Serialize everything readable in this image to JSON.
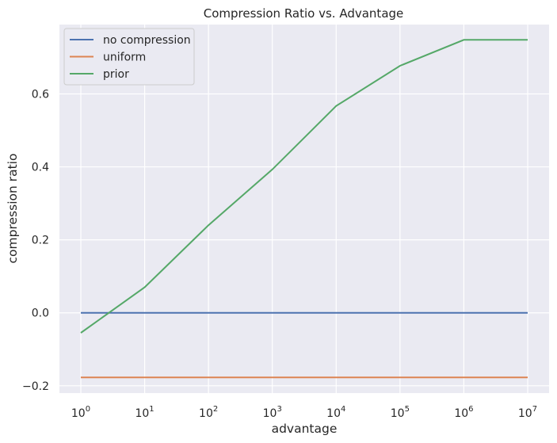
{
  "chart_data": {
    "type": "line",
    "title": "Compression Ratio vs. Advantage",
    "xlabel": "advantage",
    "ylabel": "compression ratio",
    "x_scale": "log",
    "x": [
      1,
      10,
      100,
      1000,
      10000,
      100000,
      1000000,
      10000000
    ],
    "x_tick_labels": [
      {
        "base": "10",
        "exp": "0"
      },
      {
        "base": "10",
        "exp": "1"
      },
      {
        "base": "10",
        "exp": "2"
      },
      {
        "base": "10",
        "exp": "3"
      },
      {
        "base": "10",
        "exp": "4"
      },
      {
        "base": "10",
        "exp": "5"
      },
      {
        "base": "10",
        "exp": "6"
      },
      {
        "base": "10",
        "exp": "7"
      }
    ],
    "y_ticks": [
      -0.2,
      0.0,
      0.2,
      0.4,
      0.6
    ],
    "y_tick_labels": [
      "−0.2",
      "0.0",
      "0.2",
      "0.4",
      "0.6"
    ],
    "ylim": [
      -0.22,
      0.79
    ],
    "grid": true,
    "legend_position": "top-left",
    "series": [
      {
        "name": "no compression",
        "color": "#4c72b0",
        "values": [
          0,
          0,
          0,
          0,
          0,
          0,
          0,
          0
        ]
      },
      {
        "name": "uniform",
        "color": "#dd8452",
        "values": [
          -0.177,
          -0.177,
          -0.177,
          -0.177,
          -0.177,
          -0.177,
          -0.177,
          -0.177
        ]
      },
      {
        "name": "prior",
        "color": "#55a868",
        "values": [
          -0.055,
          0.07,
          0.24,
          0.393,
          0.567,
          0.677,
          0.748,
          0.748
        ]
      }
    ]
  }
}
